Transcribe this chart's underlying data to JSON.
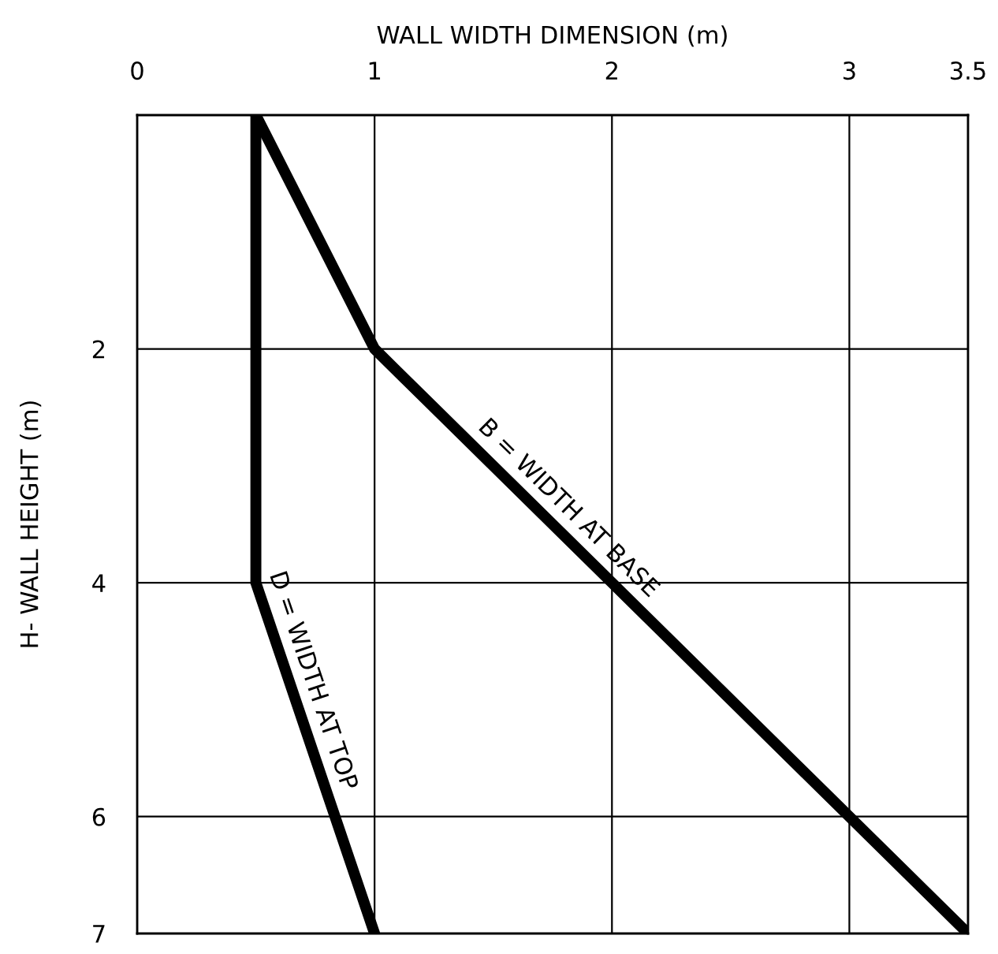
{
  "chart_data": {
    "type": "line",
    "xlabel": "WALL WIDTH DIMENSION (m)",
    "ylabel": "H- WALL HEIGHT (m)",
    "xlim": [
      0,
      3.5
    ],
    "xticks": [
      0,
      1,
      2,
      3,
      3.5
    ],
    "ylim": [
      7,
      0
    ],
    "yticks": [
      2,
      4,
      6,
      7
    ],
    "grid": true,
    "marker": "none",
    "line_style": "solid",
    "series": [
      {
        "name": "D = WIDTH AT TOP",
        "color": "#000000",
        "x": [
          0.5,
          0.5,
          1
        ],
        "values": [
          0,
          4,
          7
        ]
      },
      {
        "name": "B = WIDTH AT BASE",
        "color": "#000000",
        "x": [
          0.5,
          1,
          3.5
        ],
        "values": [
          0,
          2,
          7
        ]
      }
    ]
  }
}
